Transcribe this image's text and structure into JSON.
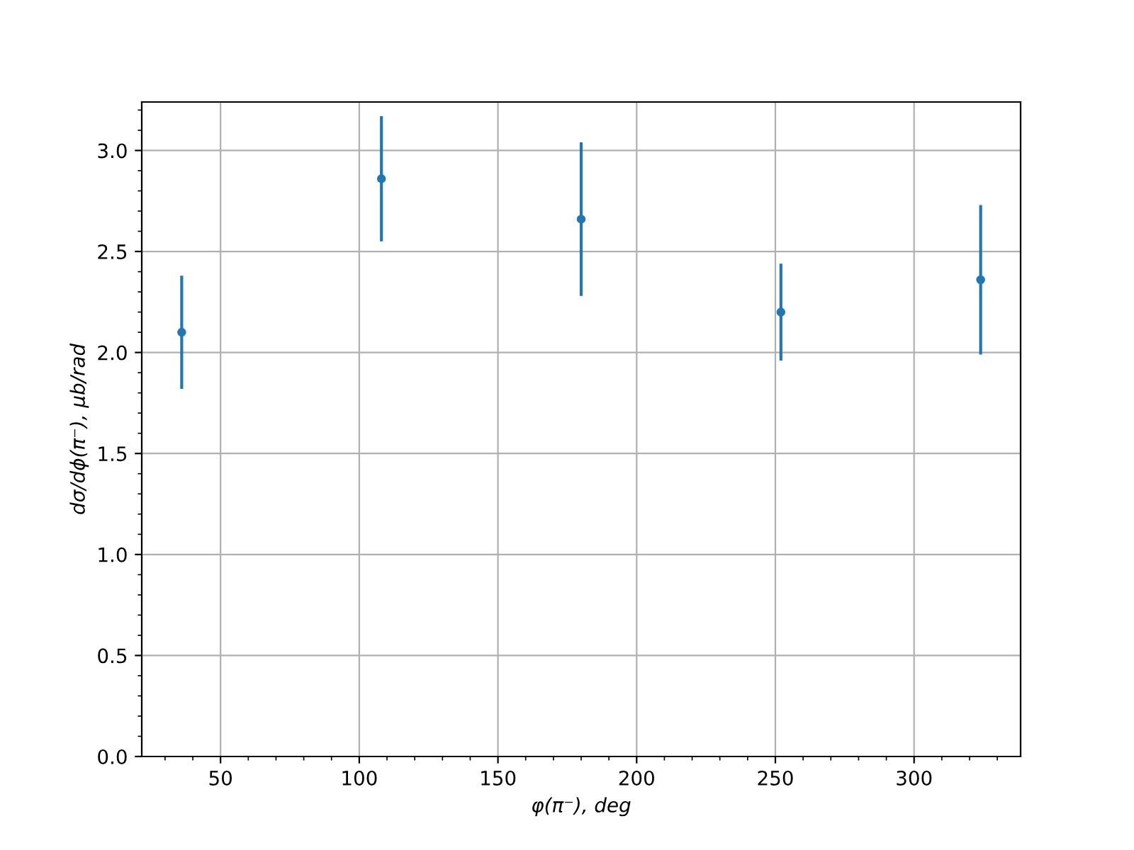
{
  "chart_data": {
    "type": "scatter",
    "xlabel": "φ(π⁻), deg",
    "ylabel": "dσ/dϕ(π⁻), μb/rad",
    "x": [
      36,
      108,
      180,
      252,
      324
    ],
    "series": [
      {
        "color": "#1f77b4",
        "values": [
          2.1,
          2.86,
          2.66,
          2.2,
          2.36
        ],
        "errors": [
          0.28,
          0.31,
          0.38,
          0.24,
          0.37
        ]
      }
    ],
    "xlim": [
      21.6,
      338.4
    ],
    "xticks": [
      50,
      100,
      150,
      200,
      250,
      300
    ],
    "ylim": [
      0,
      3.24
    ],
    "yticks": [
      {
        "value": 0,
        "label": "0.0"
      },
      {
        "value": 0.5,
        "label": "0.5"
      },
      {
        "value": 1,
        "label": "1.0"
      },
      {
        "value": 1.5,
        "label": "1.5"
      },
      {
        "value": 2,
        "label": "2.0"
      },
      {
        "value": 2.5,
        "label": "2.5"
      },
      {
        "value": 3,
        "label": "3.0"
      }
    ],
    "grid": true,
    "marker": "circle"
  }
}
